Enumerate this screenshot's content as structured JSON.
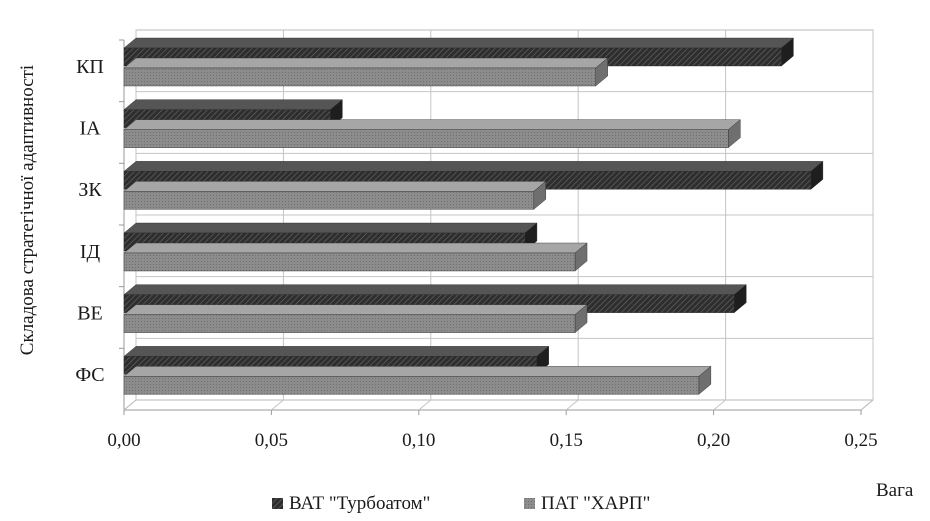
{
  "chart_data": {
    "type": "bar",
    "orientation": "horizontal",
    "style": "3d",
    "categories": [
      "ФС",
      "ВЕ",
      "ІД",
      "ЗК",
      "ІА",
      "КП"
    ],
    "series": [
      {
        "name": "ВАТ \"Турбоатом\"",
        "values": [
          0.14,
          0.207,
          0.136,
          0.233,
          0.07,
          0.223
        ],
        "color": "#3a3a3a",
        "pattern": "diagonal-hatch"
      },
      {
        "name": "ПАТ \"ХАРП\"",
        "values": [
          0.195,
          0.153,
          0.153,
          0.139,
          0.205,
          0.16
        ],
        "color": "#8a8a8a",
        "pattern": "fine-dots"
      }
    ],
    "xlabel": "Вага",
    "ylabel": "Складова стратегічної адаптивності",
    "xlim": [
      0,
      0.25
    ],
    "xticks": [
      "0,00",
      "0,05",
      "0,10",
      "0,15",
      "0,20",
      "0,25"
    ],
    "grid": true,
    "legend_position": "bottom"
  }
}
